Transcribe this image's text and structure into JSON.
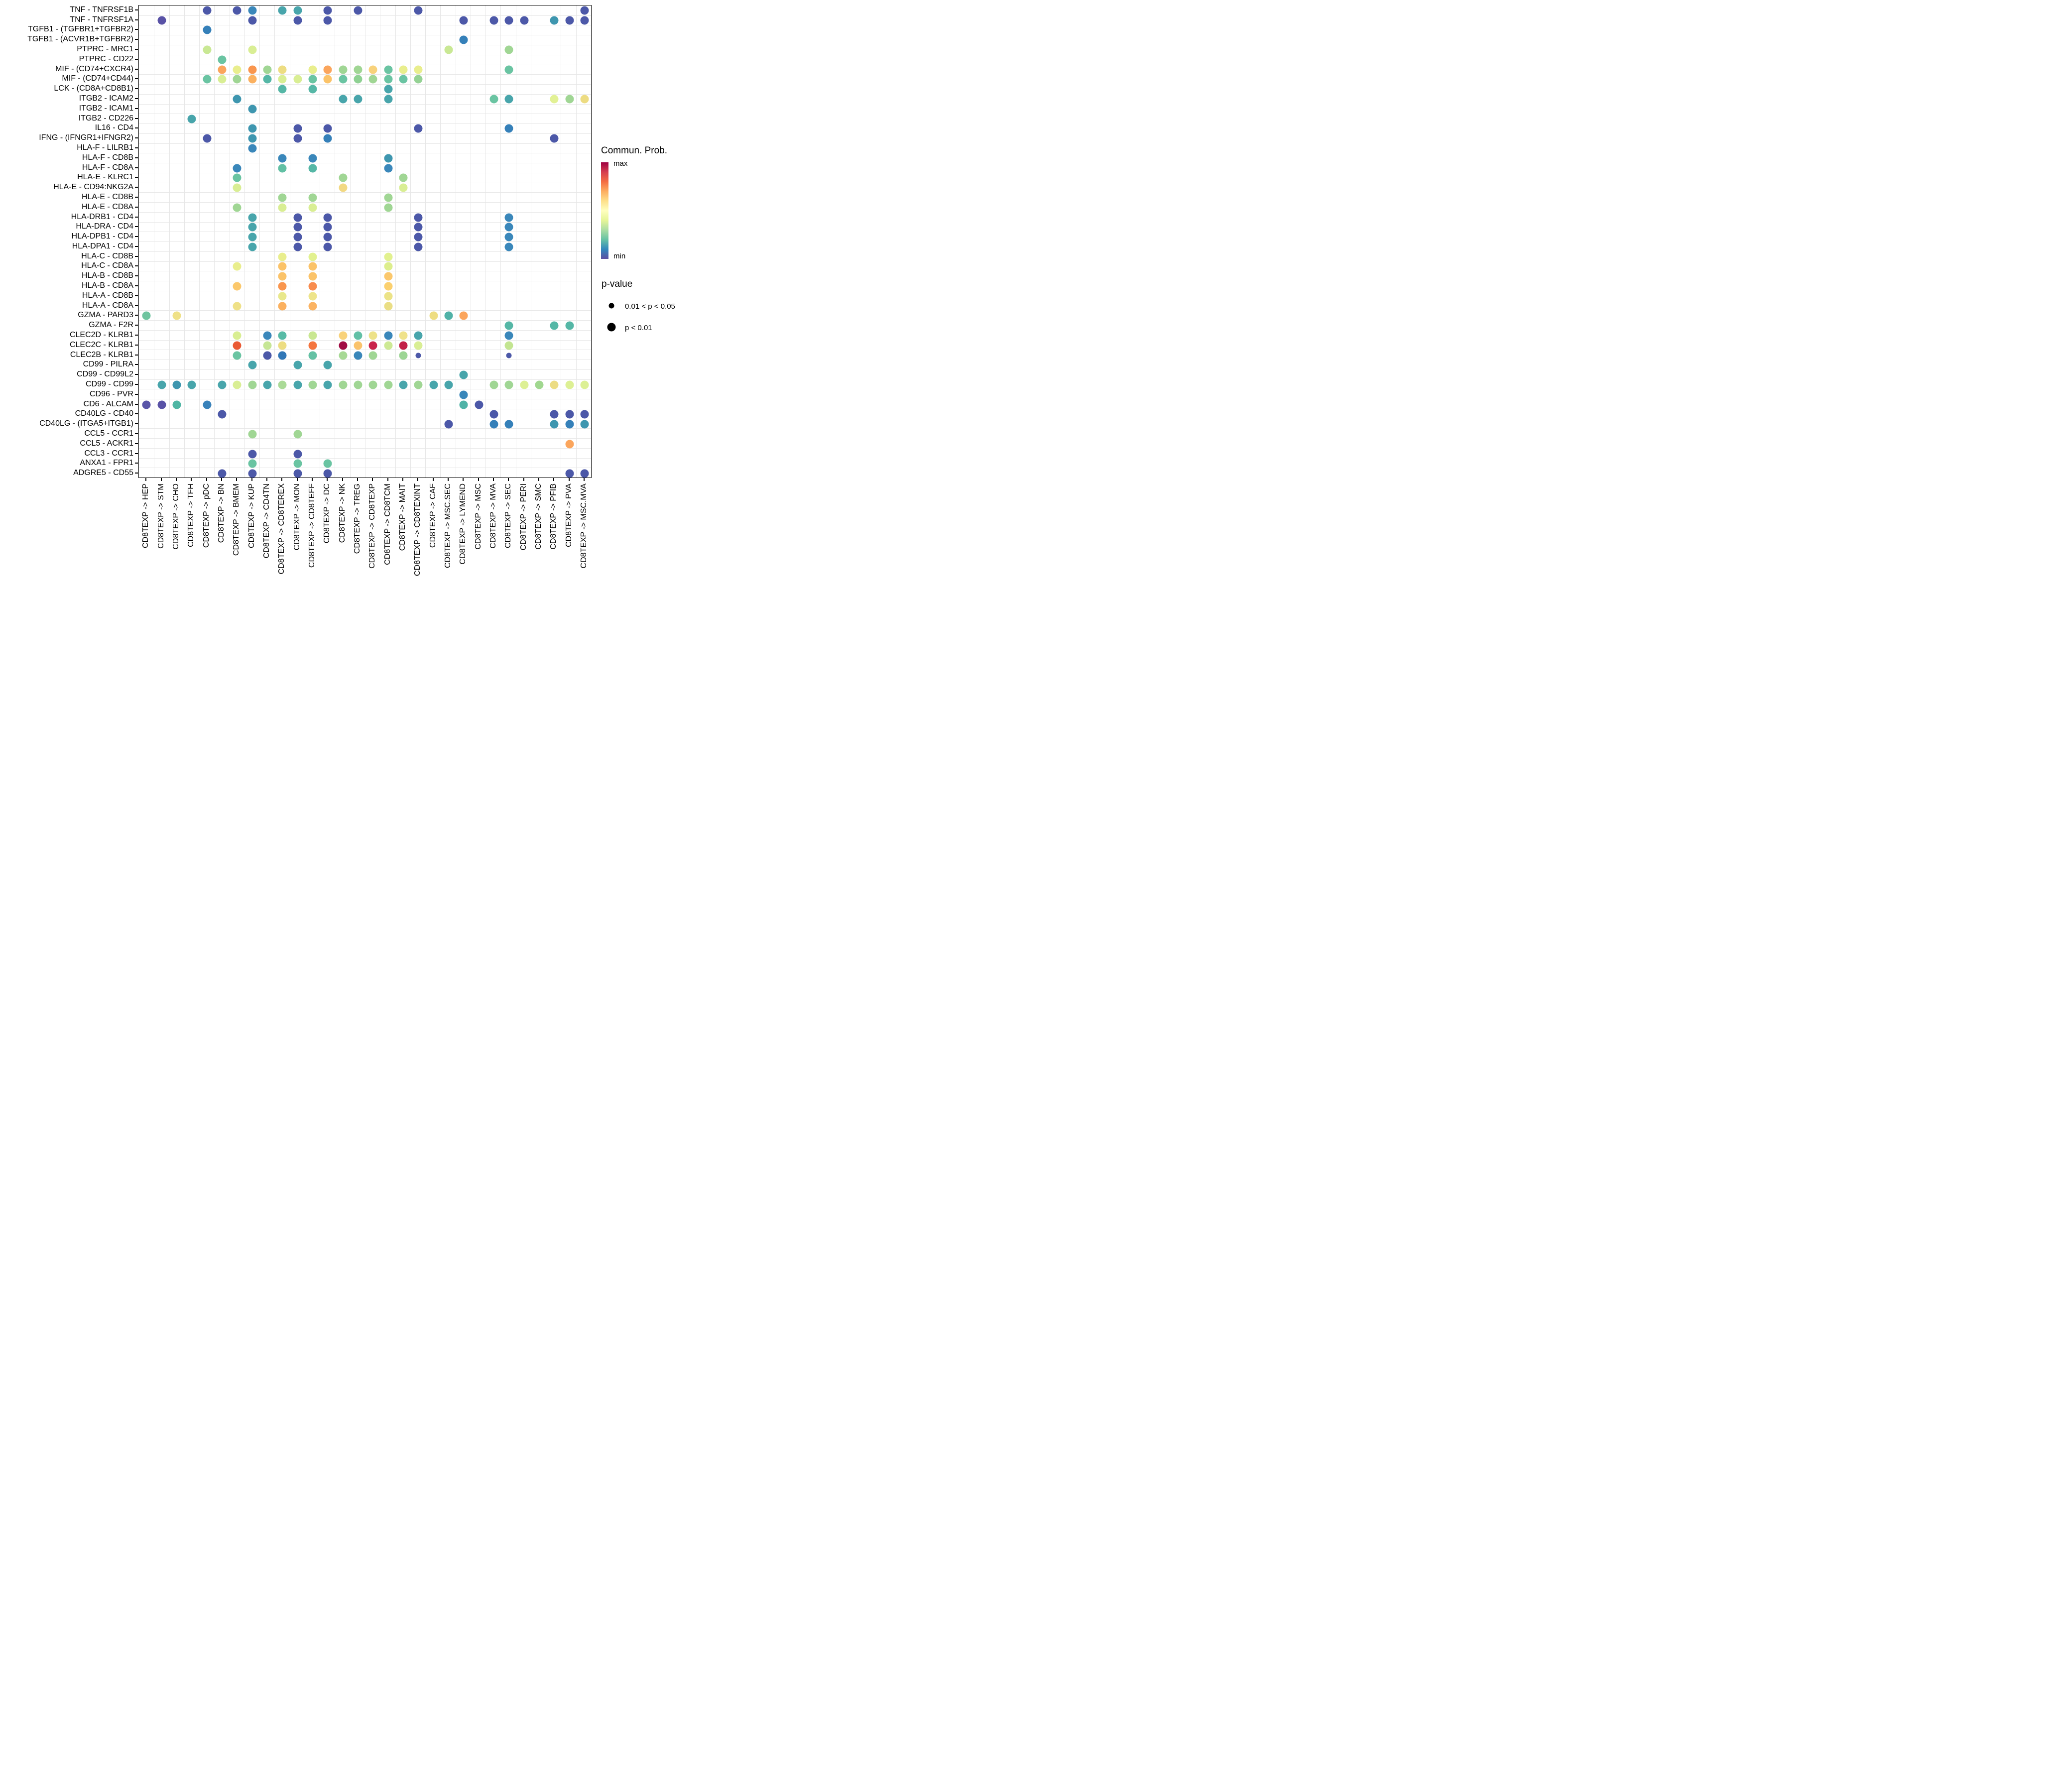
{
  "legend": {
    "colorbar": {
      "title": "Commun. Prob.",
      "max_label": "max",
      "min_label": "min",
      "gradient": [
        "#9E0142",
        "#D53E4F",
        "#F46D43",
        "#FDAE61",
        "#FEE08B",
        "#FFFFBF",
        "#E6F598",
        "#ABDDA4",
        "#66C2A5",
        "#3288BD",
        "#5E4FA2"
      ]
    },
    "pvalue": {
      "title": "p-value",
      "items": [
        {
          "label": "0.01 < p < 0.05",
          "size": "small"
        },
        {
          "label": "p < 0.01",
          "size": "large"
        }
      ]
    }
  },
  "chart_data": {
    "type": "scatter",
    "subtype": "bubble-dotplot",
    "title": "",
    "xlabel": "",
    "ylabel": "",
    "grid": "on",
    "color_scale": {
      "meaning": "Commun. Prob.",
      "min_color": "#5E4FA2",
      "max_color": "#9E0142",
      "palette": "spectral-reversed"
    },
    "size_scale": {
      "meaning": "p-value",
      "small": "0.01 < p < 0.05",
      "large": "p < 0.01"
    },
    "x_categories": [
      "CD8TEXP -> HEP",
      "CD8TEXP -> STM",
      "CD8TEXP -> CHO",
      "CD8TEXP -> TFH",
      "CD8TEXP -> pDC",
      "CD8TEXP -> BN",
      "CD8TEXP -> BMEM",
      "CD8TEXP -> KUP",
      "CD8TEXP -> CD4TN",
      "CD8TEXP -> CD8TEREX",
      "CD8TEXP -> MON",
      "CD8TEXP -> CD8TEFF",
      "CD8TEXP -> DC",
      "CD8TEXP -> NK",
      "CD8TEXP -> TREG",
      "CD8TEXP -> CD8TEXP",
      "CD8TEXP -> CD8TCM",
      "CD8TEXP -> MAIT",
      "CD8TEXP -> CD8TEXINT",
      "CD8TEXP -> CAF",
      "CD8TEXP -> MSC.SEC",
      "CD8TEXP -> LYMEND",
      "CD8TEXP -> MSC",
      "CD8TEXP -> MVA",
      "CD8TEXP -> SEC",
      "CD8TEXP -> PERI",
      "CD8TEXP -> SMC",
      "CD8TEXP -> PFIB",
      "CD8TEXP -> PVA",
      "CD8TEXP -> MSC.MVA"
    ],
    "y_categories": [
      "TNF - TNFRSF1B",
      "TNF - TNFRSF1A",
      "TGFB1 - (TGFBR1+TGFBR2)",
      "TGFB1 - (ACVR1B+TGFBR2)",
      "PTPRC - MRC1",
      "PTPRC - CD22",
      "MIF - (CD74+CXCR4)",
      "MIF - (CD74+CD44)",
      "LCK - (CD8A+CD8B1)",
      "ITGB2 - ICAM2",
      "ITGB2 - ICAM1",
      "ITGB2 - CD226",
      "IL16 - CD4",
      "IFNG - (IFNGR1+IFNGR2)",
      "HLA-F - LILRB1",
      "HLA-F - CD8B",
      "HLA-F - CD8A",
      "HLA-E - KLRC1",
      "HLA-E - CD94:NKG2A",
      "HLA-E - CD8B",
      "HLA-E - CD8A",
      "HLA-DRB1 - CD4",
      "HLA-DRA - CD4",
      "HLA-DPB1 - CD4",
      "HLA-DPA1 - CD4",
      "HLA-C - CD8B",
      "HLA-C - CD8A",
      "HLA-B - CD8B",
      "HLA-B - CD8A",
      "HLA-A - CD8B",
      "HLA-A - CD8A",
      "GZMA - PARD3",
      "GZMA - F2R",
      "CLEC2D - KLRB1",
      "CLEC2C - KLRB1",
      "CLEC2B - KLRB1",
      "CD99 - PILRA",
      "CD99 - CD99L2",
      "CD99 - CD99",
      "CD96 - PVR",
      "CD6 - ALCAM",
      "CD40LG - CD40",
      "CD40LG - (ITGA5+ITGB1)",
      "CCL5 - CCR1",
      "CCL5 - ACKR1",
      "CCL3 - CCR1",
      "ANXA1 - FPR1",
      "ADGRE5 - CD55"
    ],
    "point_format": [
      "y_index",
      "x_index",
      "color",
      "optional 's' = small dot (0.01<p<0.05); default large (p<0.01)"
    ],
    "points": [
      [
        0,
        4,
        "#4C58A8"
      ],
      [
        0,
        6,
        "#4C58A8"
      ],
      [
        0,
        7,
        "#3A87BA"
      ],
      [
        0,
        9,
        "#48A5AB"
      ],
      [
        0,
        10,
        "#48A5AB"
      ],
      [
        0,
        12,
        "#4C58A8"
      ],
      [
        0,
        14,
        "#4C58A8"
      ],
      [
        0,
        18,
        "#4C58A8"
      ],
      [
        0,
        29,
        "#4C58A8"
      ],
      [
        1,
        1,
        "#5952A6"
      ],
      [
        1,
        7,
        "#4C58A8"
      ],
      [
        1,
        10,
        "#4C58A8"
      ],
      [
        1,
        12,
        "#4C58A8"
      ],
      [
        1,
        21,
        "#4C58A8"
      ],
      [
        1,
        23,
        "#4C58A8"
      ],
      [
        1,
        24,
        "#4C58A8"
      ],
      [
        1,
        25,
        "#4C58A8"
      ],
      [
        1,
        27,
        "#3E96AF"
      ],
      [
        1,
        28,
        "#4C58A8"
      ],
      [
        1,
        29,
        "#4C58A8"
      ],
      [
        2,
        4,
        "#3580B9"
      ],
      [
        3,
        21,
        "#3580B9"
      ],
      [
        4,
        4,
        "#C9E894"
      ],
      [
        4,
        7,
        "#D9EE94"
      ],
      [
        4,
        20,
        "#C9E894"
      ],
      [
        4,
        24,
        "#A0D694"
      ],
      [
        5,
        5,
        "#6AC4A2"
      ],
      [
        6,
        5,
        "#FBA55C"
      ],
      [
        6,
        6,
        "#E9EE8D"
      ],
      [
        6,
        7,
        "#F9964E"
      ],
      [
        6,
        8,
        "#A0D694"
      ],
      [
        6,
        9,
        "#EDDD82"
      ],
      [
        6,
        11,
        "#E9EE8D"
      ],
      [
        6,
        12,
        "#FBA55C"
      ],
      [
        6,
        13,
        "#A0D694"
      ],
      [
        6,
        14,
        "#A0D694"
      ],
      [
        6,
        15,
        "#F8D27B"
      ],
      [
        6,
        16,
        "#6AC4A2"
      ],
      [
        6,
        17,
        "#E9EE8D"
      ],
      [
        6,
        18,
        "#E9EE8D"
      ],
      [
        6,
        24,
        "#6AC4A2"
      ],
      [
        7,
        4,
        "#6AC4A2"
      ],
      [
        7,
        5,
        "#D9EE94"
      ],
      [
        7,
        6,
        "#A0D694"
      ],
      [
        7,
        7,
        "#FBB160"
      ],
      [
        7,
        8,
        "#55B7A6"
      ],
      [
        7,
        9,
        "#D9EE94"
      ],
      [
        7,
        10,
        "#D9EE94"
      ],
      [
        7,
        11,
        "#6AC4A2"
      ],
      [
        7,
        12,
        "#FBC369"
      ],
      [
        7,
        13,
        "#6AC4A2"
      ],
      [
        7,
        14,
        "#8FD193"
      ],
      [
        7,
        15,
        "#A0D694"
      ],
      [
        7,
        16,
        "#6AC4A2"
      ],
      [
        7,
        17,
        "#6AC4A2"
      ],
      [
        7,
        18,
        "#95D294"
      ],
      [
        8,
        9,
        "#55B7A6"
      ],
      [
        8,
        11,
        "#55B7A6"
      ],
      [
        8,
        16,
        "#48A5AB"
      ],
      [
        9,
        6,
        "#3E96AF"
      ],
      [
        9,
        13,
        "#48A5AB"
      ],
      [
        9,
        14,
        "#48A5AB"
      ],
      [
        9,
        16,
        "#48A5AB"
      ],
      [
        9,
        23,
        "#6AC4A2"
      ],
      [
        9,
        24,
        "#48A5AB"
      ],
      [
        9,
        27,
        "#E2F195"
      ],
      [
        9,
        28,
        "#A0D694"
      ],
      [
        9,
        29,
        "#EDDC82"
      ],
      [
        10,
        7,
        "#3E96AF"
      ],
      [
        11,
        3,
        "#48A5AB"
      ],
      [
        12,
        7,
        "#3E96AF"
      ],
      [
        12,
        10,
        "#4C58A8"
      ],
      [
        12,
        12,
        "#4C58A8"
      ],
      [
        12,
        18,
        "#4C58A8"
      ],
      [
        12,
        24,
        "#3580B9"
      ],
      [
        13,
        4,
        "#4C58A8"
      ],
      [
        13,
        7,
        "#3E96AF"
      ],
      [
        13,
        10,
        "#4C58A8"
      ],
      [
        13,
        12,
        "#3580B9"
      ],
      [
        13,
        27,
        "#4C58A8"
      ],
      [
        14,
        7,
        "#3A87BA"
      ],
      [
        15,
        9,
        "#3A87BA"
      ],
      [
        15,
        11,
        "#3A87BA"
      ],
      [
        15,
        16,
        "#3E96AF"
      ],
      [
        16,
        6,
        "#3A87BA"
      ],
      [
        16,
        9,
        "#62C0A4"
      ],
      [
        16,
        11,
        "#55B7A6"
      ],
      [
        16,
        16,
        "#3A87BA"
      ],
      [
        17,
        6,
        "#6AC4A2"
      ],
      [
        17,
        13,
        "#A0D694"
      ],
      [
        17,
        17,
        "#A0D694"
      ],
      [
        18,
        6,
        "#D9EE94"
      ],
      [
        18,
        13,
        "#F2D983"
      ],
      [
        18,
        17,
        "#D9EE94"
      ],
      [
        19,
        9,
        "#A0D694"
      ],
      [
        19,
        11,
        "#A0D694"
      ],
      [
        19,
        16,
        "#A0D694"
      ],
      [
        20,
        6,
        "#A0D694"
      ],
      [
        20,
        9,
        "#D9EE94"
      ],
      [
        20,
        11,
        "#D9EE94"
      ],
      [
        20,
        16,
        "#A0D694"
      ],
      [
        21,
        7,
        "#48A5AB"
      ],
      [
        21,
        10,
        "#4C58A8"
      ],
      [
        21,
        12,
        "#4C58A8"
      ],
      [
        21,
        18,
        "#4C58A8"
      ],
      [
        21,
        24,
        "#3A87BA"
      ],
      [
        22,
        7,
        "#48A5AB"
      ],
      [
        22,
        10,
        "#4C58A8"
      ],
      [
        22,
        12,
        "#4C58A8"
      ],
      [
        22,
        18,
        "#4C58A8"
      ],
      [
        22,
        24,
        "#3A87BA"
      ],
      [
        23,
        7,
        "#48A5AB"
      ],
      [
        23,
        10,
        "#4C58A8"
      ],
      [
        23,
        12,
        "#4C58A8"
      ],
      [
        23,
        18,
        "#4C58A8"
      ],
      [
        23,
        24,
        "#3A87BA"
      ],
      [
        24,
        7,
        "#48A5AB"
      ],
      [
        24,
        10,
        "#4C58A8"
      ],
      [
        24,
        12,
        "#4C58A8"
      ],
      [
        24,
        18,
        "#4C58A8"
      ],
      [
        24,
        24,
        "#3A87BA"
      ],
      [
        25,
        9,
        "#E9EE8D"
      ],
      [
        25,
        11,
        "#E2F18F"
      ],
      [
        25,
        16,
        "#E2F18F"
      ],
      [
        26,
        6,
        "#E9EE8D"
      ],
      [
        26,
        9,
        "#FBC369"
      ],
      [
        26,
        11,
        "#FBC369"
      ],
      [
        26,
        16,
        "#DDEE8D"
      ],
      [
        27,
        9,
        "#FBC369"
      ],
      [
        27,
        11,
        "#FBC369"
      ],
      [
        27,
        16,
        "#FBC86C"
      ],
      [
        28,
        6,
        "#FBC86C"
      ],
      [
        28,
        9,
        "#F9964E"
      ],
      [
        28,
        11,
        "#F88C4E"
      ],
      [
        28,
        16,
        "#FBD06E"
      ],
      [
        29,
        9,
        "#E9E88C"
      ],
      [
        29,
        11,
        "#EEE48A"
      ],
      [
        29,
        16,
        "#ECE387"
      ],
      [
        30,
        6,
        "#EFE188"
      ],
      [
        30,
        9,
        "#FBB160"
      ],
      [
        30,
        11,
        "#FBB362"
      ],
      [
        30,
        16,
        "#EADE85"
      ],
      [
        31,
        0,
        "#6FC49F"
      ],
      [
        31,
        2,
        "#EFE188"
      ],
      [
        31,
        19,
        "#EEDD82"
      ],
      [
        31,
        20,
        "#50B2A7"
      ],
      [
        31,
        21,
        "#FBA55C"
      ],
      [
        32,
        24,
        "#55B7A6"
      ],
      [
        32,
        27,
        "#55B7A6"
      ],
      [
        32,
        28,
        "#55B7A6"
      ],
      [
        33,
        6,
        "#D9EE92"
      ],
      [
        33,
        8,
        "#3A87BA"
      ],
      [
        33,
        9,
        "#58BBA6"
      ],
      [
        33,
        11,
        "#C9E791"
      ],
      [
        33,
        13,
        "#F8D27B"
      ],
      [
        33,
        14,
        "#62C0A6"
      ],
      [
        33,
        15,
        "#EDE289"
      ],
      [
        33,
        16,
        "#3A87BA"
      ],
      [
        33,
        17,
        "#EFE28B"
      ],
      [
        33,
        18,
        "#48A5AB"
      ],
      [
        33,
        24,
        "#3A87BA"
      ],
      [
        34,
        6,
        "#EA5A34"
      ],
      [
        34,
        8,
        "#C6E695"
      ],
      [
        34,
        9,
        "#EDDD82"
      ],
      [
        34,
        11,
        "#F4753F"
      ],
      [
        34,
        13,
        "#A00C44"
      ],
      [
        34,
        14,
        "#FAC36C"
      ],
      [
        34,
        15,
        "#C9244C"
      ],
      [
        34,
        16,
        "#CDE994"
      ],
      [
        34,
        17,
        "#C22048"
      ],
      [
        34,
        18,
        "#D9EE94"
      ],
      [
        34,
        24,
        "#C3E591"
      ],
      [
        35,
        6,
        "#6AC4A2"
      ],
      [
        35,
        8,
        "#4C58A8"
      ],
      [
        35,
        9,
        "#3177B7"
      ],
      [
        35,
        11,
        "#64C1A4"
      ],
      [
        35,
        13,
        "#A7D995"
      ],
      [
        35,
        14,
        "#3A87BA"
      ],
      [
        35,
        15,
        "#A0D694"
      ],
      [
        35,
        17,
        "#9CD594"
      ],
      [
        35,
        18,
        "#4C58A8",
        "s"
      ],
      [
        35,
        24,
        "#4C58A8",
        "s"
      ],
      [
        36,
        7,
        "#48A5AB"
      ],
      [
        36,
        10,
        "#48A5AB"
      ],
      [
        36,
        12,
        "#48A5AB"
      ],
      [
        37,
        21,
        "#48A5AB"
      ],
      [
        38,
        1,
        "#48A5AB"
      ],
      [
        38,
        2,
        "#3E96AF"
      ],
      [
        38,
        3,
        "#48A5AB"
      ],
      [
        38,
        5,
        "#48A5AB"
      ],
      [
        38,
        6,
        "#D9EE94"
      ],
      [
        38,
        7,
        "#A0D694"
      ],
      [
        38,
        8,
        "#48A5AB"
      ],
      [
        38,
        9,
        "#AADA97"
      ],
      [
        38,
        10,
        "#48A5AB"
      ],
      [
        38,
        11,
        "#A0D694"
      ],
      [
        38,
        12,
        "#48A5AB"
      ],
      [
        38,
        13,
        "#A0D694"
      ],
      [
        38,
        14,
        "#A0D694"
      ],
      [
        38,
        15,
        "#A0D694"
      ],
      [
        38,
        16,
        "#A0D694"
      ],
      [
        38,
        17,
        "#48A5AB"
      ],
      [
        38,
        18,
        "#A0D694"
      ],
      [
        38,
        19,
        "#48A5AB"
      ],
      [
        38,
        20,
        "#48A5AB"
      ],
      [
        38,
        23,
        "#A0D694"
      ],
      [
        38,
        24,
        "#A0D694"
      ],
      [
        38,
        25,
        "#DDF094"
      ],
      [
        38,
        26,
        "#A0D78F"
      ],
      [
        38,
        27,
        "#ECDC83"
      ],
      [
        38,
        28,
        "#DDF094"
      ],
      [
        38,
        29,
        "#DCF094"
      ],
      [
        39,
        21,
        "#3A87BA"
      ],
      [
        40,
        0,
        "#5955A8"
      ],
      [
        40,
        1,
        "#5952A6"
      ],
      [
        40,
        2,
        "#4FB6A4"
      ],
      [
        40,
        4,
        "#3982BA"
      ],
      [
        40,
        21,
        "#50B3A7"
      ],
      [
        40,
        22,
        "#4C58A8"
      ],
      [
        41,
        5,
        "#4C58A8"
      ],
      [
        41,
        23,
        "#4C58A8"
      ],
      [
        41,
        27,
        "#4C58A8"
      ],
      [
        41,
        28,
        "#4C58A8"
      ],
      [
        41,
        29,
        "#4C58A8"
      ],
      [
        42,
        20,
        "#4C58A8"
      ],
      [
        42,
        23,
        "#3580B9"
      ],
      [
        42,
        24,
        "#3580B9"
      ],
      [
        42,
        27,
        "#3E96AF"
      ],
      [
        42,
        28,
        "#3580B9"
      ],
      [
        42,
        29,
        "#3E96AF"
      ],
      [
        43,
        7,
        "#A0D694"
      ],
      [
        43,
        10,
        "#A0D694"
      ],
      [
        44,
        28,
        "#FBA55C"
      ],
      [
        45,
        7,
        "#4C58A8"
      ],
      [
        45,
        10,
        "#4C58A8"
      ],
      [
        46,
        7,
        "#6AC4A2"
      ],
      [
        46,
        10,
        "#6AC4A2"
      ],
      [
        46,
        12,
        "#6AC4A2"
      ],
      [
        47,
        5,
        "#4C58A8"
      ],
      [
        47,
        7,
        "#4C58A8"
      ],
      [
        47,
        10,
        "#4C58A8"
      ],
      [
        47,
        12,
        "#4C58A8"
      ],
      [
        47,
        28,
        "#4C58A8"
      ],
      [
        47,
        29,
        "#4C58A8"
      ]
    ]
  }
}
